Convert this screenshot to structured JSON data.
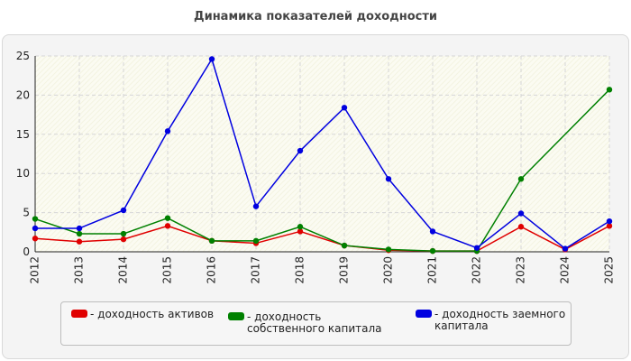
{
  "chart_data": {
    "type": "line",
    "title": "Динамика показателей доходности",
    "x": [
      "2012",
      "2013",
      "2014",
      "2015",
      "2016",
      "2017",
      "2018",
      "2019",
      "2020",
      "2021",
      "2022",
      "2023",
      "2024",
      "2025"
    ],
    "ylim": [
      0,
      25
    ],
    "yticks": [
      "0",
      "5",
      "10",
      "15",
      "20",
      "25"
    ],
    "grid": true,
    "legend_position": "bottom",
    "series": [
      {
        "name": "- доходность активов",
        "color": "#e00000",
        "values": [
          1.7,
          1.3,
          1.6,
          3.3,
          1.4,
          1.1,
          2.6,
          0.8,
          0.2,
          0.1,
          0.1,
          3.2,
          0.3,
          3.3
        ]
      },
      {
        "name": "- доходность собственного капитала",
        "color": "#008000",
        "values": [
          4.2,
          2.3,
          2.3,
          4.3,
          1.4,
          1.4,
          3.2,
          0.8,
          0.3,
          0.1,
          0.1,
          9.3,
          null,
          20.7
        ]
      },
      {
        "name": "- доходность заемного капитала",
        "color": "#0000e0",
        "values": [
          3.0,
          3.0,
          5.3,
          15.4,
          24.6,
          5.8,
          12.9,
          18.4,
          9.3,
          2.6,
          0.5,
          4.9,
          0.4,
          3.9
        ]
      }
    ]
  }
}
